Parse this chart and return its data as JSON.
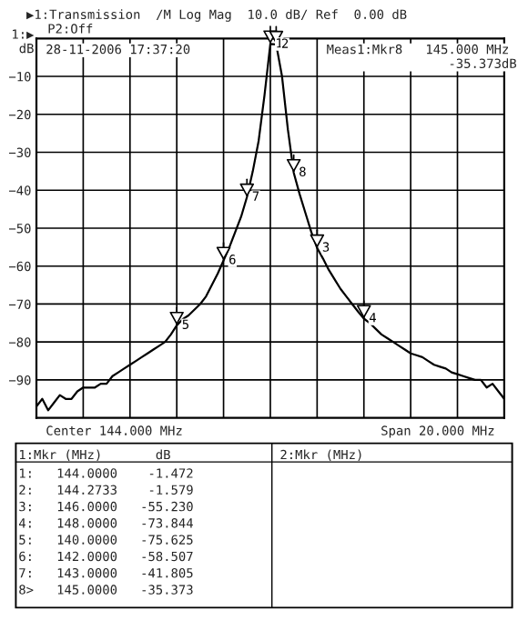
{
  "chart_data": {
    "type": "line",
    "title": "▶1:Transmission  /M Log Mag  10.0 dB/ Ref  0.00 dB",
    "subtitle": "P2:Off",
    "ylabel": "1:▶\ndB",
    "categories": [
      null,
      null,
      null,
      null,
      null,
      null,
      null,
      null,
      null,
      null,
      null,
      null,
      null,
      null,
      null,
      null,
      null,
      null,
      null,
      null,
      null,
      null,
      null,
      null,
      null,
      null,
      null,
      null,
      null,
      null,
      null,
      null,
      null,
      null,
      null,
      null,
      null,
      null,
      null,
      null,
      null,
      null,
      null,
      null,
      null,
      null,
      null,
      null,
      null,
      null,
      null,
      null,
      null,
      null,
      null,
      null,
      null,
      null,
      null,
      null,
      null,
      null,
      null,
      null,
      null,
      null,
      null,
      null,
      null,
      null,
      null,
      null,
      null,
      null,
      null,
      null,
      null,
      null,
      null,
      null,
      null
    ],
    "ylim": [
      -100,
      0
    ],
    "yticks": [
      -90,
      -80,
      -70,
      -60,
      -50,
      -40,
      -30,
      -20,
      -10
    ],
    "tick_labels": "y",
    "grid": true,
    "series": [
      {
        "color": "#000000",
        "values": [
          -97,
          -95,
          -98,
          -96,
          -94,
          -95,
          -95,
          -93,
          -92,
          -92,
          -92,
          -91,
          -91,
          -89,
          -88,
          -87,
          -86,
          -85,
          -84,
          -83,
          -82,
          -81,
          -80,
          -78,
          -75.625,
          -74,
          -73,
          -71.5,
          -70,
          -68,
          -65,
          -62,
          -58.507,
          -55,
          -51,
          -47,
          -41.805,
          -35,
          -27,
          -15,
          -1.472,
          -1.579,
          -10,
          -24,
          -35.373,
          -41,
          -46,
          -51,
          -55.23,
          -58,
          -61,
          -63.5,
          -66,
          -68,
          -70,
          -72,
          -73.844,
          -75,
          -76.5,
          -78,
          -79,
          -80,
          -81,
          -82,
          -83,
          -83.5,
          -84,
          -85,
          -86,
          -86.5,
          -87,
          -88,
          -88.5,
          -89,
          -89.5,
          -90,
          -90,
          -92,
          -91,
          -93,
          -95
        ]
      }
    ],
    "annotations": [
      {
        "text": "1",
        "y": -1.472
      },
      {
        "text": "2",
        "y": -1.579
      },
      {
        "text": "3",
        "y": -55.23
      },
      {
        "text": "4",
        "y": -73.844
      },
      {
        "text": "5",
        "y": -75.625
      },
      {
        "text": "6",
        "y": -58.507
      },
      {
        "text": "7",
        "y": -41.805
      },
      {
        "text": "8",
        "y": -35.373
      },
      "28-11-2006 17:37:20",
      "Meas1:Mkr8   145.000 MHz\n                -35.373dB",
      "Center 144.000 MHz",
      "Span 20.000 MHz",
      "1:Mkr (MHz)       dB",
      "2:Mkr (MHz)",
      "1:   144.0000    -1.472\n2:   144.2733    -1.579\n3:   146.0000   -55.230\n4:   148.0000   -73.844\n5:   140.0000   -75.625\n6:   142.0000   -58.507\n7:   143.0000   -41.805\n8>   145.0000   -35.373"
    ]
  }
}
